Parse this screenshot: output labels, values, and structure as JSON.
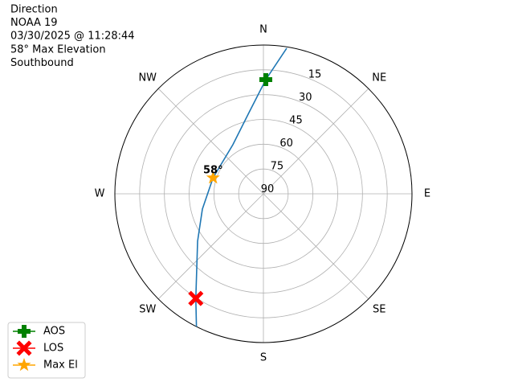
{
  "chart_data": {
    "type": "polar",
    "title_lines": [
      "Direction",
      "NOAA 19",
      "03/30/2025 @ 11:28:44",
      "58° Max Elevation",
      "Southbound"
    ],
    "theta_zero": "N",
    "theta_direction": "clockwise",
    "thetaticks": [
      {
        "value": 0,
        "label": "N"
      },
      {
        "value": 45,
        "label": "NE"
      },
      {
        "value": 90,
        "label": "E"
      },
      {
        "value": 135,
        "label": "SE"
      },
      {
        "value": 180,
        "label": "S"
      },
      {
        "value": 225,
        "label": "SW"
      },
      {
        "value": 270,
        "label": "W"
      },
      {
        "value": 315,
        "label": "NW"
      }
    ],
    "rlim": [
      90,
      0
    ],
    "rticks": [
      15,
      30,
      45,
      60,
      75,
      90
    ],
    "grid": true,
    "series": [
      {
        "color": "#1f77b4",
        "theta": [
          9.1,
          1.2,
          349.9,
          328.1,
          287.6,
          256,
          234.3,
          212.9,
          206.8
        ],
        "r": [
          0.8,
          20.9,
          40.1,
          55,
          58,
          51.9,
          40.9,
          14.6,
          0
        ]
      },
      {
        "name": "AOS",
        "color": "green",
        "marker": "plus",
        "theta": [
          1.2
        ],
        "r": [
          20.9
        ]
      },
      {
        "name": "LOS",
        "color": "red",
        "marker": "x",
        "theta": [
          212.9
        ],
        "r": [
          14.6
        ]
      },
      {
        "name": "Max El",
        "color": "orange",
        "marker": "star",
        "theta": [
          287.6
        ],
        "r": [
          58
        ]
      }
    ],
    "annotations": [
      {
        "text": "58°",
        "theta": 287.6,
        "r": 58
      }
    ],
    "legend": "lower left"
  }
}
